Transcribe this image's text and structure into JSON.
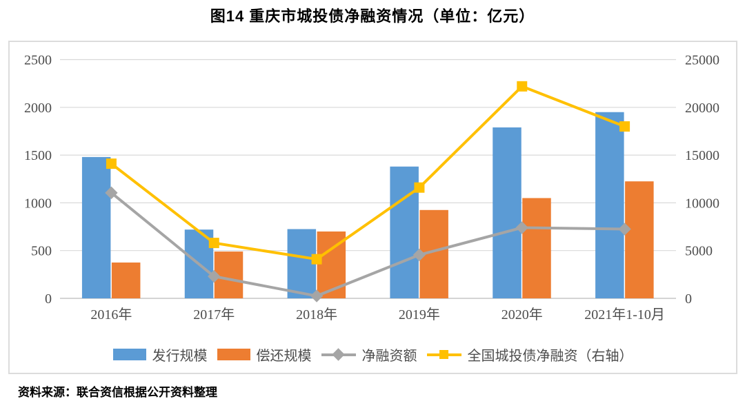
{
  "title": "图14  重庆市城投债净融资情况（单位：亿元）",
  "source": "资料来源：联合资信根据公开资料整理",
  "colors": {
    "issuance_blue": "#5B9BD5",
    "repayment_orange": "#ED7D31",
    "net_gray": "#A5A5A5",
    "national_yellow": "#FFC000",
    "gridline": "#D9D9D9",
    "axis_text": "#4d4d4d"
  },
  "chart_data": {
    "type": "bar",
    "subtype": "grouped-bars-with-lines",
    "categories": [
      "2016年",
      "2017年",
      "2018年",
      "2019年",
      "2020年",
      "2021年1-10月"
    ],
    "series": [
      {
        "name": "发行规模",
        "type": "bar",
        "axis": "left",
        "color": "#5B9BD5",
        "values": [
          1480,
          720,
          725,
          1380,
          1790,
          1950
        ]
      },
      {
        "name": "偿还规模",
        "type": "bar",
        "axis": "left",
        "color": "#ED7D31",
        "values": [
          375,
          490,
          700,
          925,
          1050,
          1225
        ]
      },
      {
        "name": "净融资额",
        "type": "line",
        "marker": "diamond",
        "axis": "left",
        "color": "#A5A5A5",
        "values": [
          1105,
          230,
          25,
          455,
          740,
          725
        ]
      },
      {
        "name": "全国城投债净融资（右轴）",
        "type": "line",
        "marker": "square",
        "axis": "right",
        "color": "#FFC000",
        "values": [
          14100,
          5800,
          4100,
          11600,
          22200,
          18000
        ]
      }
    ],
    "left_axis": {
      "min": 0,
      "max": 2500,
      "step": 500,
      "ticks": [
        "0",
        "500",
        "1000",
        "1500",
        "2000",
        "2500"
      ]
    },
    "right_axis": {
      "min": 0,
      "max": 25000,
      "step": 5000,
      "ticks": [
        "0",
        "5000",
        "10000",
        "15000",
        "20000",
        "25000"
      ]
    },
    "grid": true,
    "legend_position": "bottom"
  }
}
